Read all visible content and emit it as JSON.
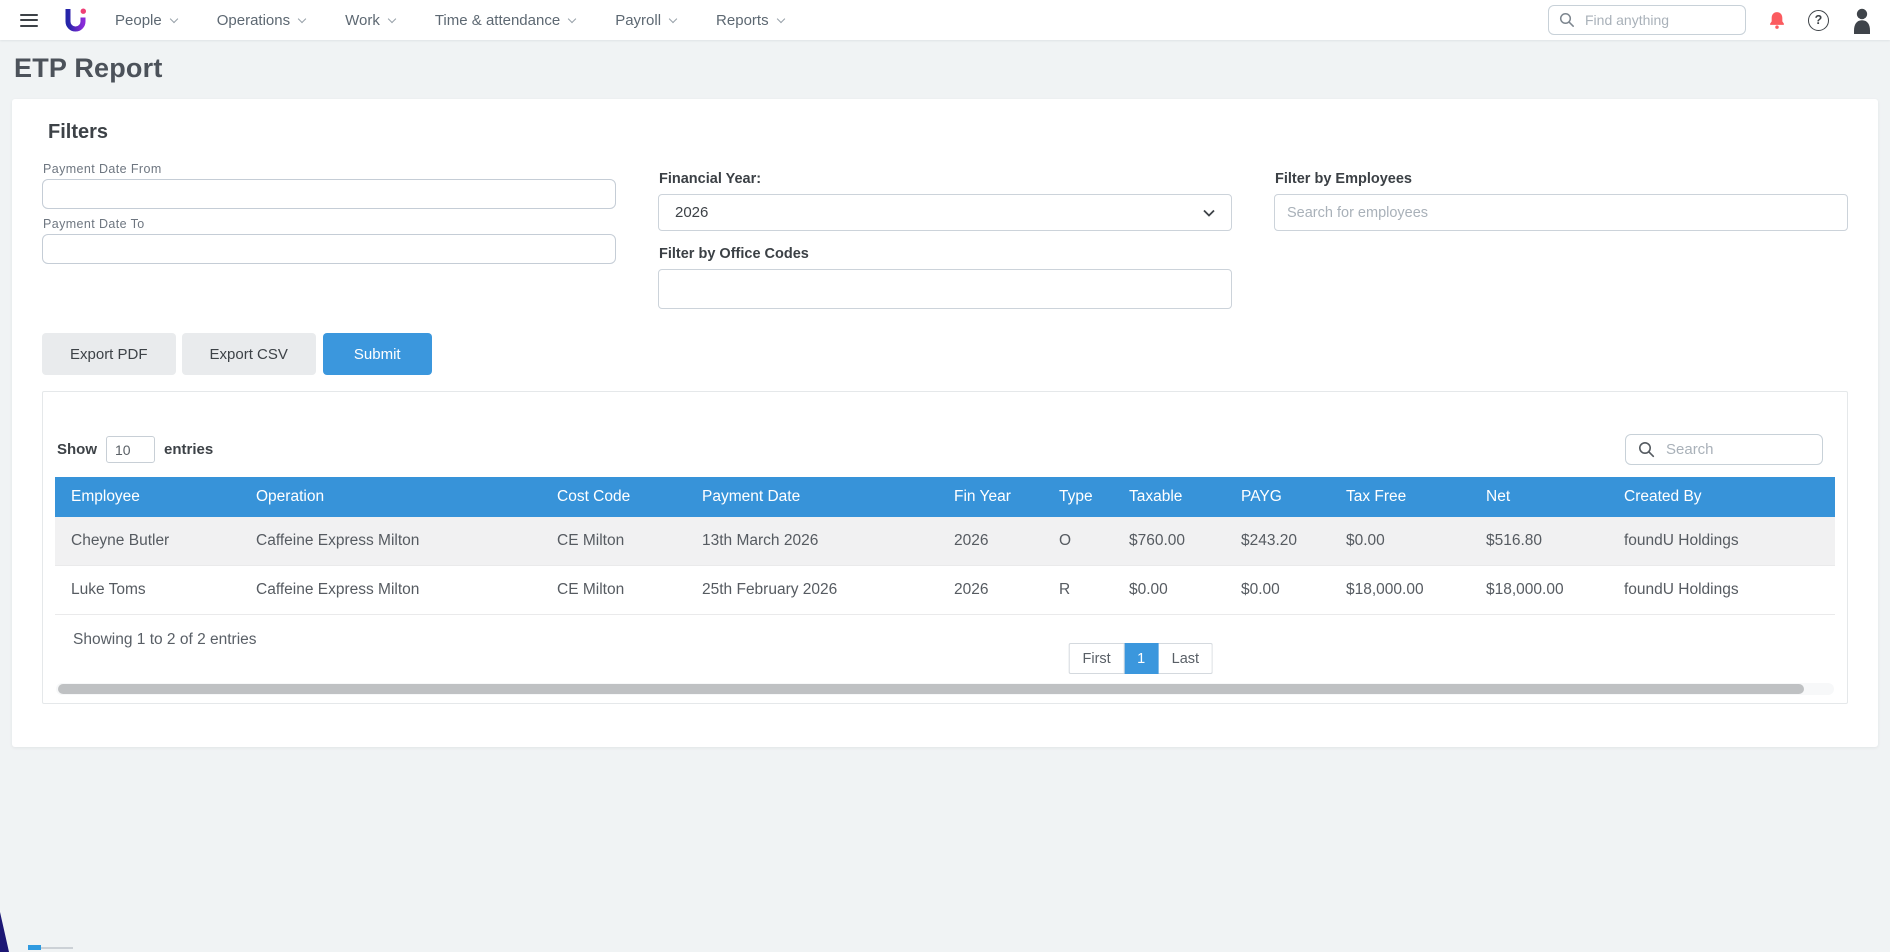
{
  "topbar": {
    "menu_items": [
      "People",
      "Operations",
      "Work",
      "Time & attendance",
      "Payroll",
      "Reports"
    ],
    "search_placeholder": "Find anything"
  },
  "page": {
    "title": "ETP Report"
  },
  "filters": {
    "heading": "Filters",
    "payment_date_from_label": "Payment Date From",
    "payment_date_from_value": "",
    "payment_date_to_label": "Payment Date To",
    "payment_date_to_value": "",
    "financial_year_label": "Financial Year:",
    "financial_year_value": "2026",
    "office_codes_label": "Filter by Office Codes",
    "office_codes_value": "",
    "employees_label": "Filter by Employees",
    "employees_placeholder": "Search for employees"
  },
  "actions": {
    "export_pdf_label": "Export PDF",
    "export_csv_label": "Export CSV",
    "submit_label": "Submit"
  },
  "table": {
    "show_label": "Show",
    "show_value": "10",
    "entries_label": "entries",
    "search_placeholder": "Search",
    "columns": [
      "Employee",
      "Operation",
      "Cost Code",
      "Payment Date",
      "Fin Year",
      "Type",
      "Taxable",
      "PAYG",
      "Tax Free",
      "Net",
      "Created By"
    ],
    "rows": [
      [
        "Cheyne Butler",
        "Caffeine Express Milton",
        "CE Milton",
        "13th March 2026",
        "2026",
        "O",
        "$760.00",
        "$243.20",
        "$0.00",
        "$516.80",
        "foundU Holdings"
      ],
      [
        "Luke Toms",
        "Caffeine Express Milton",
        "CE Milton",
        "25th February 2026",
        "2026",
        "R",
        "$0.00",
        "$0.00",
        "$18,000.00",
        "$18,000.00",
        "foundU Holdings"
      ]
    ],
    "summary": "Showing 1 to 2 of 2 entries",
    "pagination": {
      "first_label": "First",
      "current_page": "1",
      "last_label": "Last"
    }
  },
  "colors": {
    "accent_blue": "#3b97dd",
    "header_blue": "#3793d9",
    "notification_red": "#fb5b5f",
    "row_stripe": "#f1f1f2"
  }
}
